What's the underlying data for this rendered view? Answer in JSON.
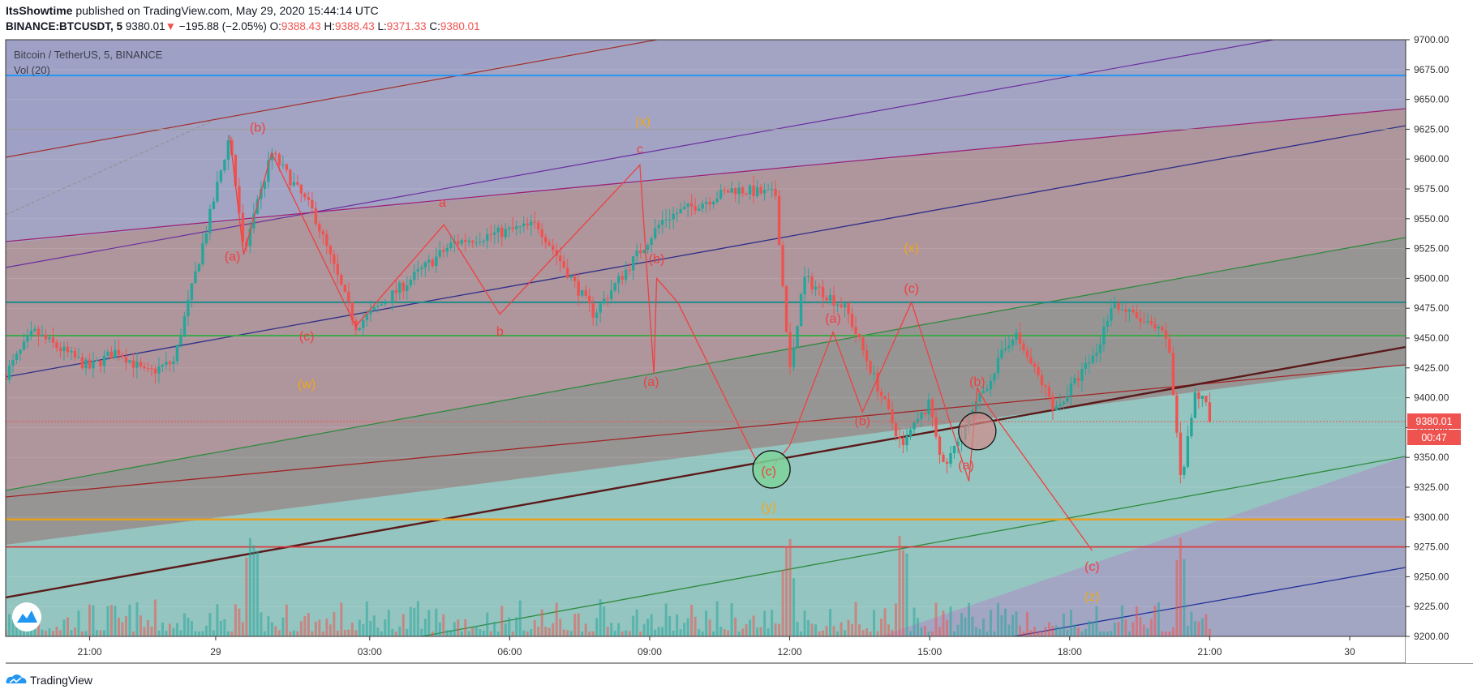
{
  "header": {
    "author": "ItsShowtime",
    "published_text": "published on TradingView.com, May 29, 2020 15:44:14 UTC",
    "symbol_line": "BINANCE:BTCUSDT, 5",
    "last_price": "9380.01",
    "change": "−195.88 (−2.05%)",
    "o_label": "O:",
    "o": "9388.43",
    "h_label": "H:",
    "h": "9388.43",
    "l_label": "L:",
    "l": "9371.33",
    "c_label": "C:",
    "c": "9380.01"
  },
  "legend": {
    "title": "Bitcoin / TetherUS, 5, BINANCE",
    "volume": "Vol (20)"
  },
  "price_badge": {
    "price": "9380.01",
    "countdown": "00:47"
  },
  "footer": {
    "brand": "TradingView"
  },
  "chart_data": {
    "type": "candlestick",
    "symbol": "BTCUSDT",
    "exchange": "BINANCE",
    "interval_minutes": 5,
    "y_ticks": [
      9200,
      9225,
      9250,
      9275,
      9300,
      9325,
      9350,
      9375,
      9400,
      9425,
      9450,
      9475,
      9500,
      9525,
      9550,
      9575,
      9600,
      9625,
      9650,
      9675,
      9700
    ],
    "ylim": [
      9200,
      9700
    ],
    "x_ticks": [
      "21:00",
      "29",
      "03:00",
      "06:00",
      "09:00",
      "12:00",
      "15:00",
      "18:00",
      "21:00",
      "30"
    ],
    "last_price": 9380.01,
    "price_path": [
      [
        0,
        9420
      ],
      [
        2,
        9455
      ],
      [
        4,
        9440
      ],
      [
        6,
        9425
      ],
      [
        8,
        9440
      ],
      [
        10,
        9420
      ],
      [
        12,
        9430
      ],
      [
        16,
        9620
      ],
      [
        17,
        9520
      ],
      [
        19,
        9605
      ],
      [
        22,
        9555
      ],
      [
        25,
        9460
      ],
      [
        32,
        9530
      ],
      [
        38,
        9545
      ],
      [
        42,
        9470
      ],
      [
        47,
        9550
      ],
      [
        52,
        9575
      ],
      [
        55,
        9570
      ],
      [
        56,
        9420
      ],
      [
        57,
        9500
      ],
      [
        60,
        9475
      ],
      [
        64,
        9360
      ],
      [
        66,
        9395
      ],
      [
        67,
        9340
      ],
      [
        72,
        9455
      ],
      [
        75,
        9390
      ],
      [
        78,
        9440
      ],
      [
        79,
        9480
      ],
      [
        83,
        9450
      ],
      [
        84,
        9330
      ],
      [
        85,
        9405
      ],
      [
        86,
        9390
      ]
    ],
    "wave_labels": [
      {
        "text": "(b)",
        "x": 18.0,
        "y": 9623,
        "color": "red"
      },
      {
        "text": "(a)",
        "x": 16.2,
        "y": 9515,
        "color": "red"
      },
      {
        "text": "(c)",
        "x": 21.5,
        "y": 9448,
        "color": "red"
      },
      {
        "text": "(w)",
        "x": 21.5,
        "y": 9408,
        "color": "gold"
      },
      {
        "text": "a",
        "x": 31.2,
        "y": 9560,
        "color": "red"
      },
      {
        "text": "b",
        "x": 35.3,
        "y": 9452,
        "color": "red"
      },
      {
        "text": "c",
        "x": 45.3,
        "y": 9605,
        "color": "red"
      },
      {
        "text": "(x)",
        "x": 45.5,
        "y": 9628,
        "color": "gold"
      },
      {
        "text": "(b)",
        "x": 46.5,
        "y": 9513,
        "color": "red"
      },
      {
        "text": "(a)",
        "x": 46.1,
        "y": 9410,
        "color": "red"
      },
      {
        "text": "(c)",
        "x": 54.5,
        "y": 9335,
        "color": "red"
      },
      {
        "text": "(y)",
        "x": 54.5,
        "y": 9305,
        "color": "gold"
      },
      {
        "text": "(a)",
        "x": 59.1,
        "y": 9463,
        "color": "red"
      },
      {
        "text": "(b)",
        "x": 61.2,
        "y": 9377,
        "color": "red"
      },
      {
        "text": "(c)",
        "x": 64.7,
        "y": 9488,
        "color": "red"
      },
      {
        "text": "(x)",
        "x": 64.7,
        "y": 9522,
        "color": "gold"
      },
      {
        "text": "(b)",
        "x": 69.4,
        "y": 9410,
        "color": "red"
      },
      {
        "text": "(a)",
        "x": 68.6,
        "y": 9340,
        "color": "red"
      },
      {
        "text": "(c)",
        "x": 77.6,
        "y": 9255,
        "color": "red"
      },
      {
        "text": "(z)",
        "x": 77.6,
        "y": 9230,
        "color": "gold"
      }
    ]
  }
}
